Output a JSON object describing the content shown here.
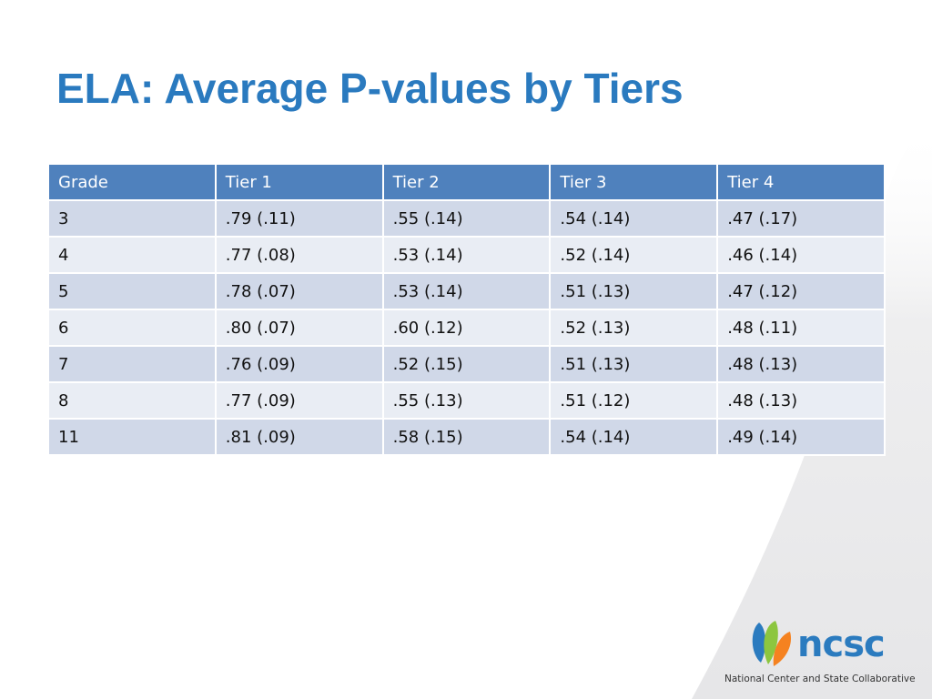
{
  "slide": {
    "title": "ELA: Average P-values by Tiers"
  },
  "table": {
    "headers": [
      "Grade",
      "Tier 1",
      "Tier 2",
      "Tier 3",
      "Tier 4"
    ],
    "rows": [
      [
        "3",
        ".79 (.11)",
        ".55 (.14)",
        ".54 (.14)",
        ".47 (.17)"
      ],
      [
        "4",
        ".77 (.08)",
        ".53 (.14)",
        ".52 (.14)",
        ".46 (.14)"
      ],
      [
        "5",
        ".78 (.07)",
        ".53 (.14)",
        ".51 (.13)",
        ".47 (.12)"
      ],
      [
        "6",
        ".80 (.07)",
        ".60 (.12)",
        ".52 (.13)",
        ".48 (.11)"
      ],
      [
        "7",
        ".76 (.09)",
        ".52 (.15)",
        ".51 (.13)",
        ".48 (.13)"
      ],
      [
        "8",
        ".77 (.09)",
        ".55 (.13)",
        ".51 (.12)",
        ".48 (.13)"
      ],
      [
        "11",
        ".81 (.09)",
        ".58 (.15)",
        ".54 (.14)",
        ".49 (.14)"
      ]
    ]
  },
  "logo": {
    "wordmark": "ncsc",
    "tagline": "National Center and State Collaborative",
    "icon": "leaf-petals-icon"
  },
  "colors": {
    "title": "#2a7abf",
    "header_bg": "#4f81bd",
    "row_odd": "#d0d8e8",
    "row_even": "#e9edf4",
    "swoosh": "#ebebed"
  }
}
